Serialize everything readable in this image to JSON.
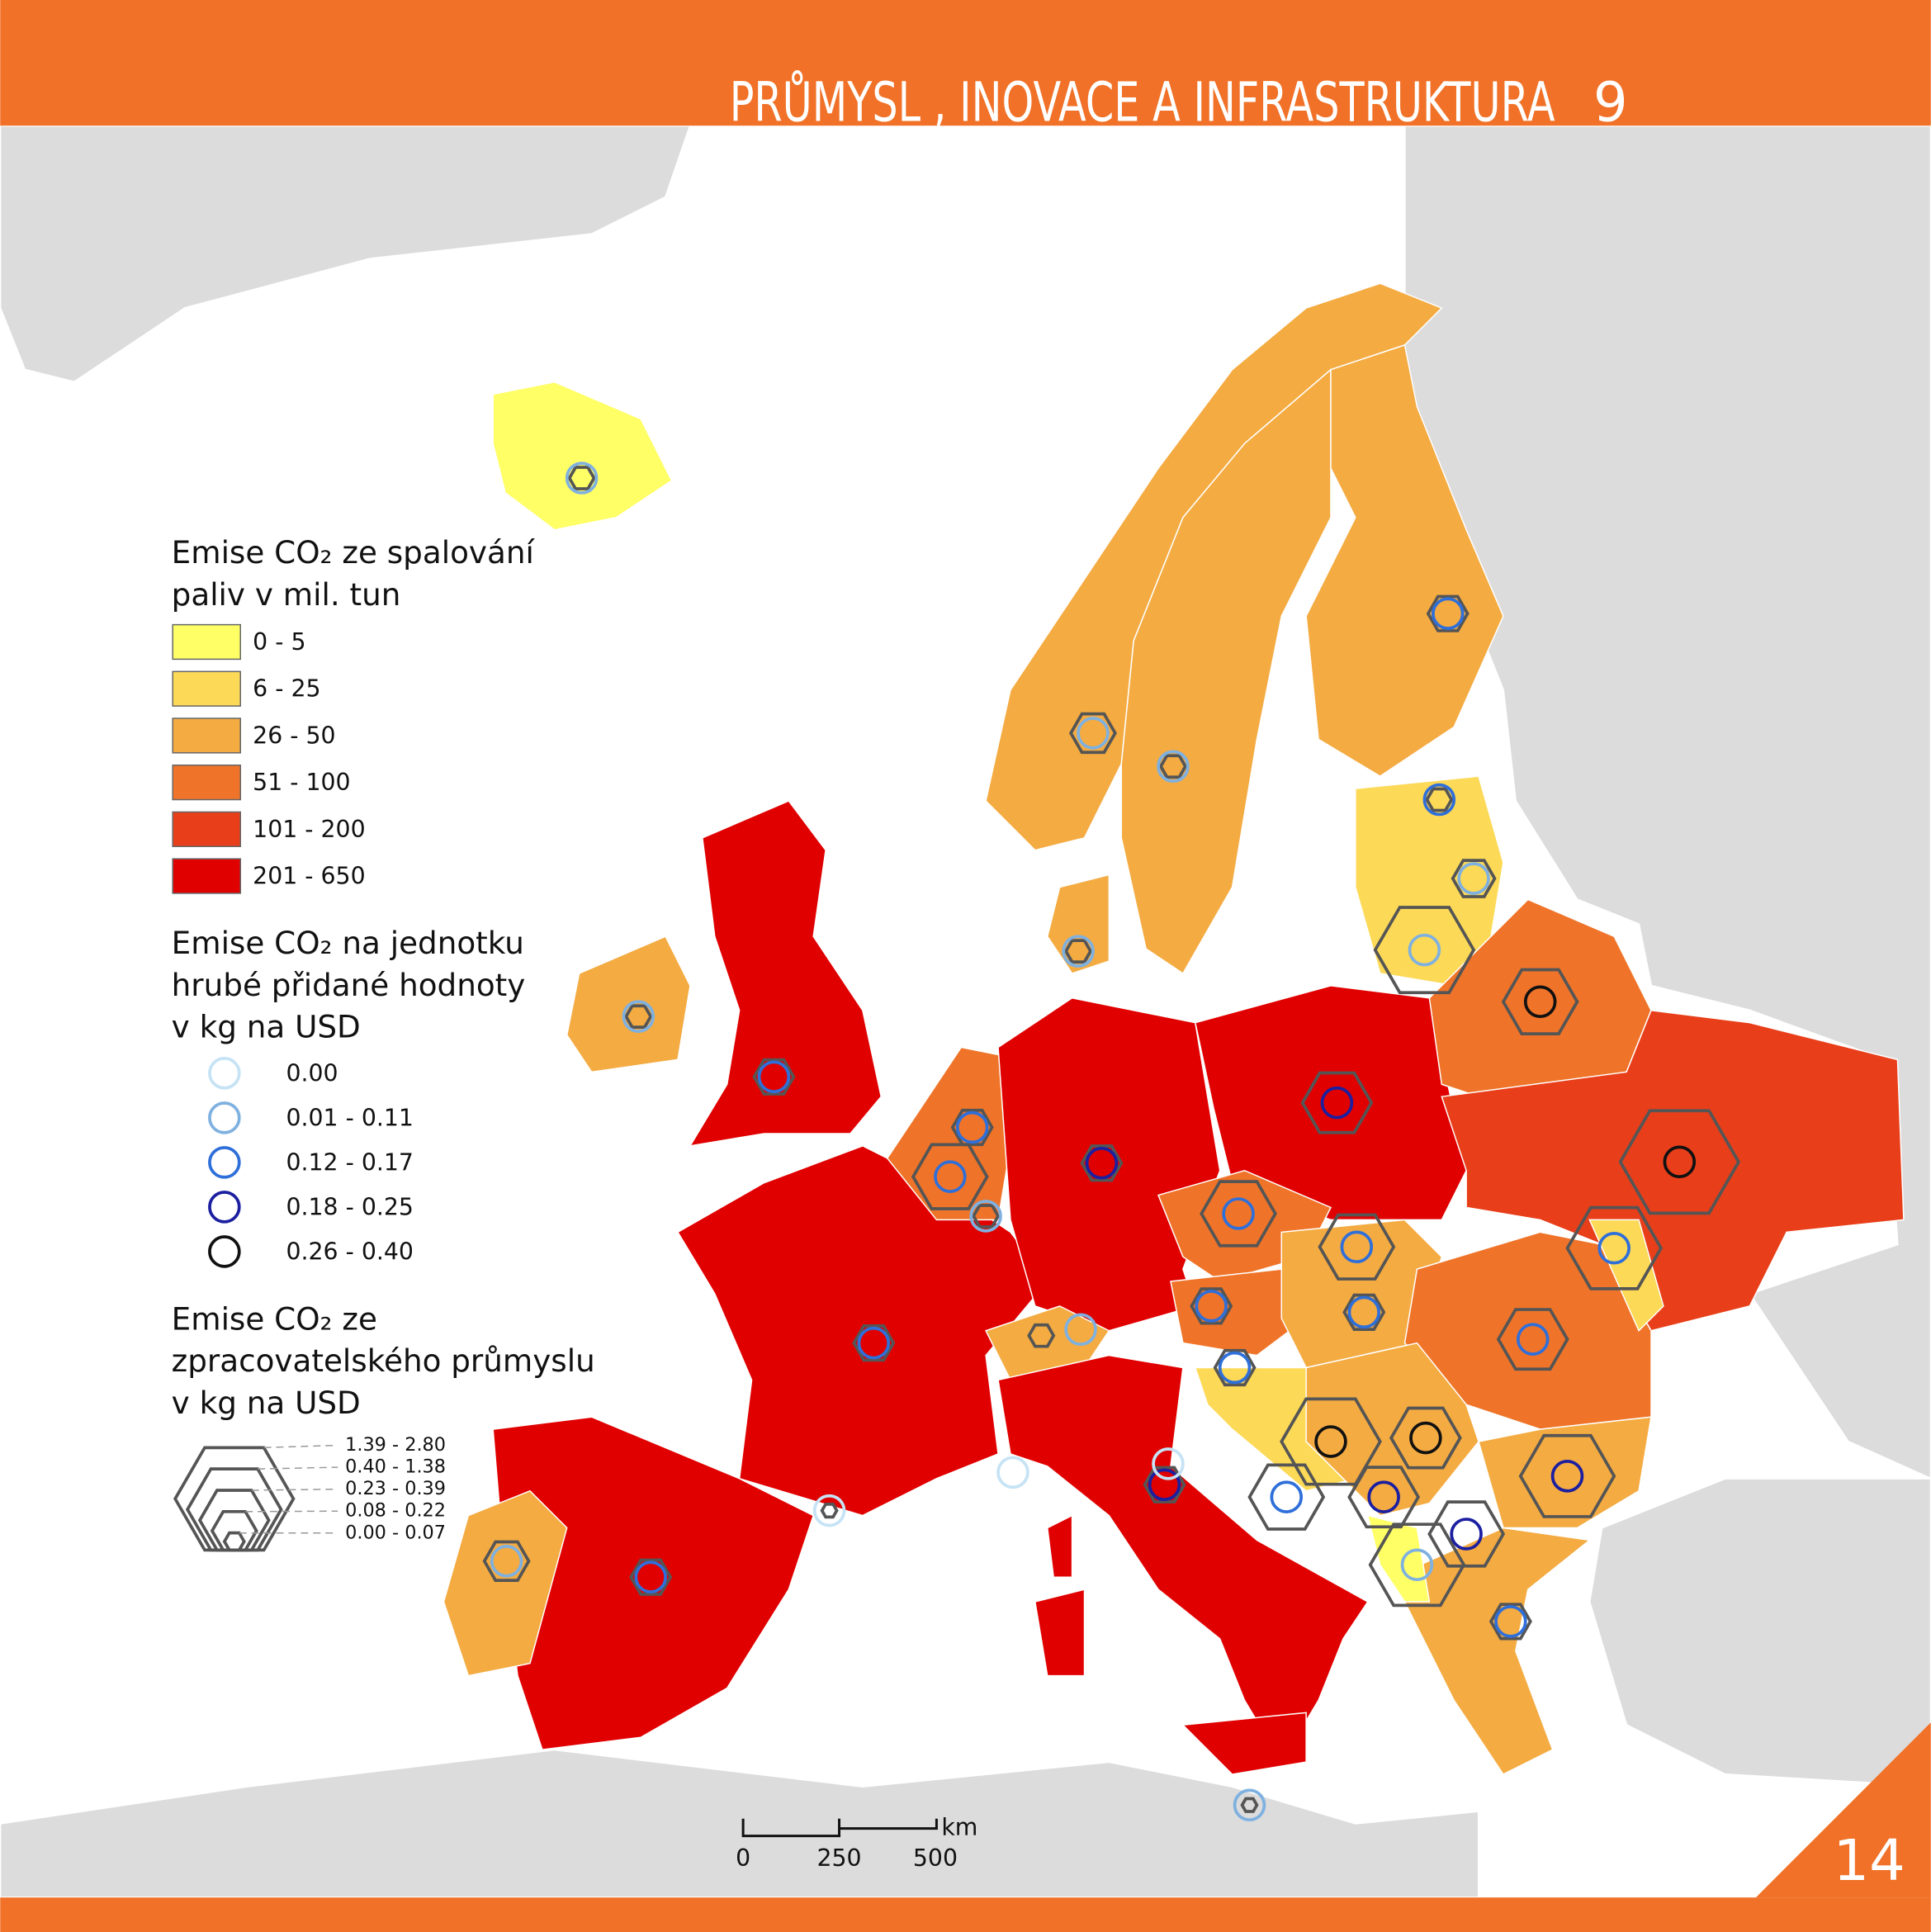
{
  "header": {
    "title": "PRŮMYSL , INOVACE A INFRASTRUKTURA",
    "goal_number": "9"
  },
  "page_number": "14",
  "legend": {
    "emissions_total": {
      "title": [
        "Emise CO₂ ze spalování",
        "paliv v mil. tun"
      ],
      "classes": [
        {
          "label": "0 - 5",
          "color": "#ffff66"
        },
        {
          "label": "6 - 25",
          "color": "#fcd957"
        },
        {
          "label": "26 - 50",
          "color": "#f4ab42"
        },
        {
          "label": "51 - 100",
          "color": "#ef7429"
        },
        {
          "label": "101 - 200",
          "color": "#e83f1a"
        },
        {
          "label": "201 - 650",
          "color": "#e10000"
        }
      ]
    },
    "emissions_per_gva": {
      "title": [
        "Emise CO₂ na jednotku",
        "hrubé přidané hodnoty",
        "v kg na USD"
      ],
      "classes": [
        {
          "label": "0.00",
          "color": "#c6e3f5"
        },
        {
          "label": "0.01 - 0.11",
          "color": "#7fb1e0"
        },
        {
          "label": "0.12 - 0.17",
          "color": "#2f6fd9"
        },
        {
          "label": "0.18 - 0.25",
          "color": "#1b1fa0"
        },
        {
          "label": "0.26 - 0.40",
          "color": "#111111"
        }
      ]
    },
    "emissions_manufacturing": {
      "title": [
        "Emise CO₂ ze",
        "zpracovatelského průmyslu",
        "v kg na USD"
      ],
      "classes": [
        {
          "label": "1.39 - 2.80"
        },
        {
          "label": "0.40 - 1.38"
        },
        {
          "label": "0.23 - 0.39"
        },
        {
          "label": "0.08 - 0.22"
        },
        {
          "label": "0.00 - 0.07"
        }
      ],
      "color": "#555555"
    }
  },
  "scale_bar": {
    "labels": [
      "0",
      "250",
      "500"
    ],
    "unit": "km"
  }
}
